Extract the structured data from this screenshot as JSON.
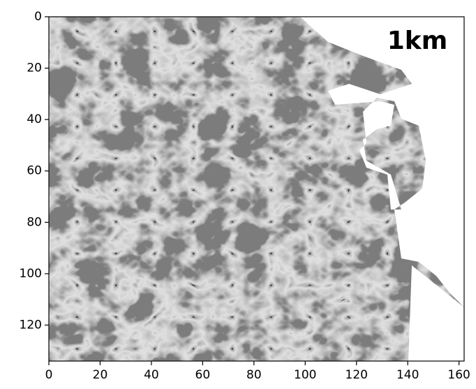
{
  "chart_data": {
    "type": "image",
    "annotation": "1km",
    "xlim": [
      0,
      162
    ],
    "xticks": [
      0,
      20,
      40,
      60,
      80,
      100,
      120,
      140,
      160
    ],
    "ylim": [
      0,
      134
    ],
    "yticks": [
      0,
      20,
      40,
      60,
      80,
      100,
      120
    ],
    "y_inverted": true,
    "colormap": "gray"
  }
}
